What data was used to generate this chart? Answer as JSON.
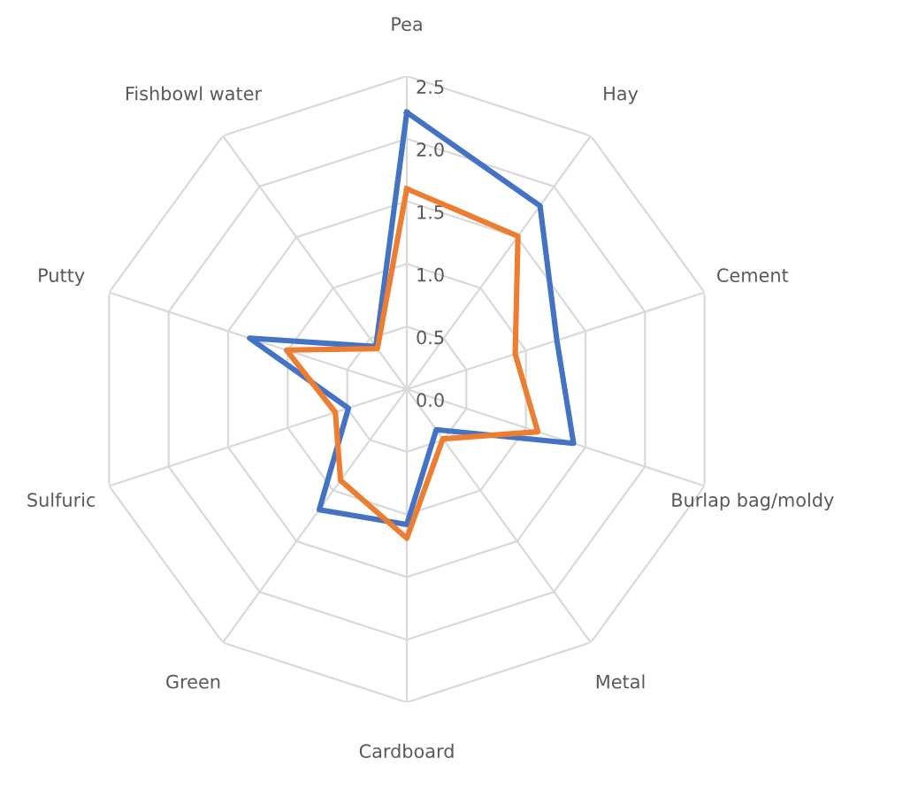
{
  "chart_data": {
    "type": "radar",
    "categories": [
      "Pea",
      "Hay",
      "Cement",
      "Burlap bag/moldy",
      "Metal",
      "Cardboard",
      "Green",
      "Sulfuric",
      "Putty",
      "Fishbowl water"
    ],
    "series": [
      {
        "color": "#4472c4",
        "values": [
          2.21,
          1.81,
          1.26,
          1.4,
          0.4,
          1.08,
          1.19,
          0.49,
          1.32,
          0.42
        ]
      },
      {
        "color": "#ed7d31",
        "values": [
          1.6,
          1.51,
          0.91,
          1.1,
          0.49,
          1.19,
          0.9,
          0.6,
          1.01,
          0.4
        ]
      }
    ],
    "ylim": [
      0,
      2.5
    ],
    "yticks": [
      {
        "value": 0,
        "label": "0.0"
      },
      {
        "value": 0.5,
        "label": "0.5"
      },
      {
        "value": 1,
        "label": "1.0"
      },
      {
        "value": 1.5,
        "label": "1.5"
      },
      {
        "value": 2,
        "label": "2.0"
      },
      {
        "value": 2.5,
        "label": "2.5"
      }
    ],
    "grid": true,
    "marker": "none",
    "line_style": "solid"
  }
}
